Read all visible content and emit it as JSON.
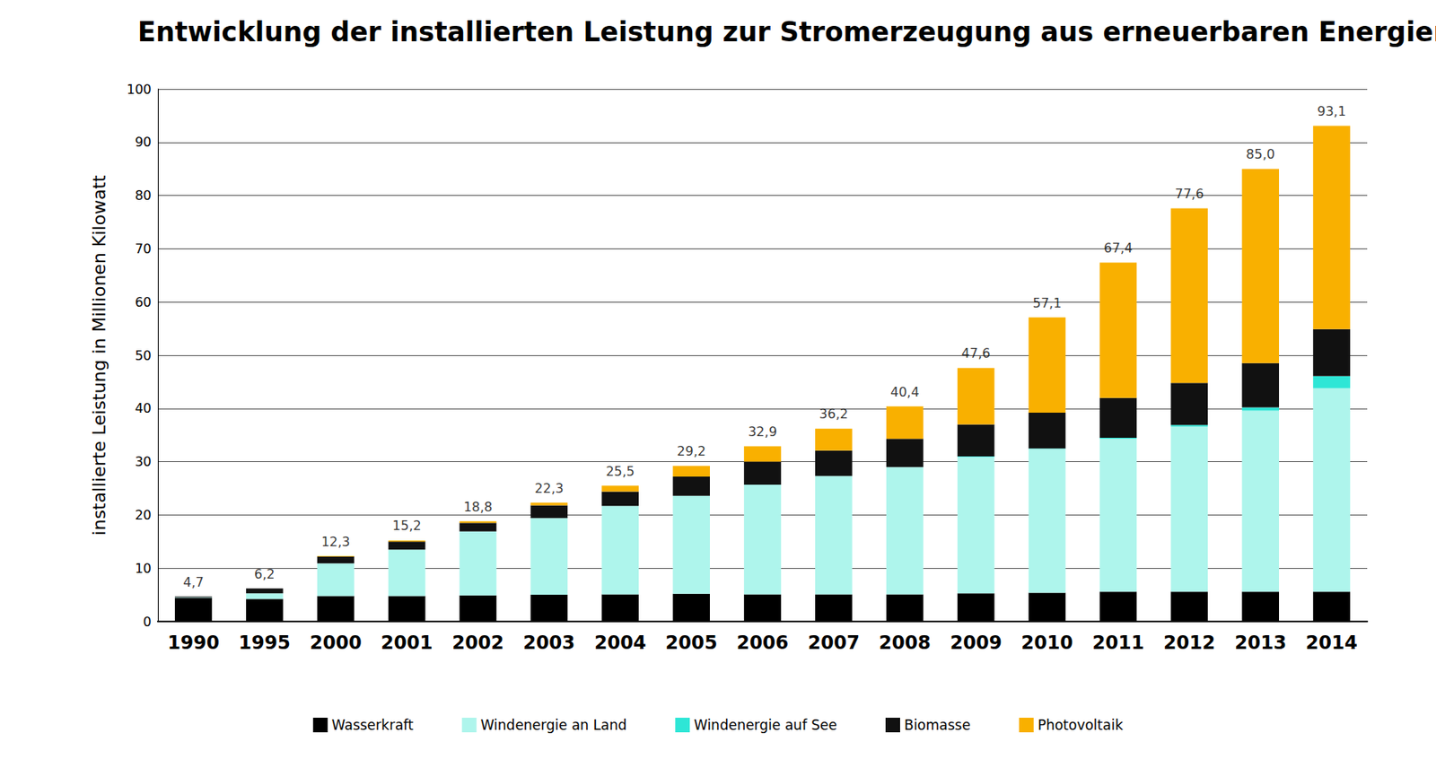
{
  "chart_data": {
    "type": "bar",
    "title": "Entwicklung der installierten Leistung zur Stromerzeugung aus erneuerbaren Energien",
    "y_label": "installierte Leistung in Millionen Kilowatt",
    "categories": [
      "1990",
      "1995",
      "2000",
      "2001",
      "2002",
      "2003",
      "2004",
      "2005",
      "2006",
      "2007",
      "2008",
      "2009",
      "2010",
      "2011",
      "2012",
      "2013",
      "2014"
    ],
    "series": [
      {
        "name": "Wasserkraft",
        "color": "#000000",
        "values": [
          4.5,
          4.2,
          4.8,
          4.8,
          4.9,
          5.0,
          5.1,
          5.2,
          5.1,
          5.1,
          5.1,
          5.3,
          5.4,
          5.6,
          5.6,
          5.6,
          5.6
        ]
      },
      {
        "name": "Windenergie an Land",
        "color": "#aef5ec",
        "values": [
          0.1,
          1.1,
          6.1,
          8.7,
          12.0,
          14.4,
          16.6,
          18.4,
          20.6,
          22.2,
          23.9,
          25.6,
          27.0,
          28.7,
          31.0,
          34.0,
          38.2
        ]
      },
      {
        "name": "Windenergie auf See",
        "color": "#2ee6d6",
        "values": [
          0,
          0,
          0,
          0,
          0,
          0,
          0,
          0,
          0,
          0,
          0,
          0.1,
          0.1,
          0.2,
          0.3,
          0.6,
          2.3
        ]
      },
      {
        "name": "Biomasse",
        "color": "#111111",
        "values": [
          0.1,
          0.9,
          1.3,
          1.5,
          1.6,
          2.4,
          2.7,
          3.6,
          4.3,
          4.8,
          5.3,
          6.0,
          6.7,
          7.5,
          7.9,
          8.3,
          8.8
        ]
      },
      {
        "name": "Photovoltaik",
        "color": "#f9b000",
        "values": [
          0,
          0,
          0.1,
          0.2,
          0.3,
          0.5,
          1.1,
          2.0,
          2.9,
          4.1,
          6.1,
          10.6,
          17.9,
          25.4,
          32.8,
          36.5,
          38.2
        ]
      }
    ],
    "totals": [
      4.7,
      6.2,
      12.3,
      15.2,
      18.8,
      22.3,
      25.5,
      29.2,
      32.9,
      36.2,
      40.4,
      47.6,
      57.1,
      67.4,
      77.6,
      85.0,
      93.1
    ],
    "total_labels": [
      "4,7",
      "6,2",
      "12,3",
      "15,2",
      "18,8",
      "22,3",
      "25,5",
      "29,2",
      "32,9",
      "36,2",
      "40,4",
      "47,6",
      "57,1",
      "67,4",
      "77,6",
      "85,0",
      "93,1"
    ],
    "ylim": [
      0,
      100
    ],
    "yticks": [
      0,
      10,
      20,
      30,
      40,
      50,
      60,
      70,
      80,
      90,
      100
    ],
    "grid": true,
    "stacked": true,
    "legend": "bottom"
  }
}
